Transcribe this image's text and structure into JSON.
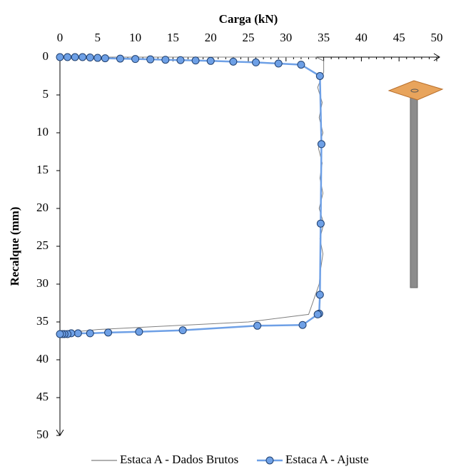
{
  "chart_data": {
    "type": "line",
    "x_label": "Carga (kN)",
    "y_label": "Recalque (mm)",
    "xlim": [
      0,
      50
    ],
    "xticks": [
      0,
      5,
      10,
      15,
      20,
      25,
      30,
      35,
      40,
      45,
      50
    ],
    "ylim": [
      0,
      50
    ],
    "yticks": [
      0,
      5,
      10,
      15,
      20,
      25,
      30,
      35,
      40,
      45,
      50
    ],
    "x_axis_position": "top",
    "y_inverted": true,
    "legend": "bottom",
    "series": [
      {
        "name": "Estaca A - Dados Brutos",
        "color": "#808080",
        "x": [
          0,
          10,
          20,
          30,
          34,
          35,
          35,
          34.2,
          34.8,
          34.4,
          34.9,
          34.3,
          34.8,
          34.5,
          34.9,
          34.4,
          35,
          34.5,
          34.9,
          34.6,
          34.4,
          33,
          25,
          15,
          5,
          0
        ],
        "values": [
          0,
          0,
          0,
          0,
          0,
          0.5,
          2,
          4,
          6,
          8,
          10,
          12,
          14,
          16,
          18,
          20,
          22,
          24,
          26,
          28,
          30,
          34,
          35,
          35.5,
          36,
          36.5
        ]
      },
      {
        "name": "Estaca A  - Ajuste",
        "color": "#6ea0e6",
        "marker": "circle",
        "x": [
          0,
          1,
          2,
          3,
          4,
          5,
          6,
          8,
          10,
          12,
          14,
          16,
          18,
          20,
          23,
          26,
          29,
          32,
          34.5,
          34.7,
          34.6,
          34.5,
          34.4,
          34.2,
          32.2,
          26.2,
          16.3,
          10.5,
          6.4,
          4,
          2.4,
          1.5,
          1,
          0.6,
          0.3,
          0
        ],
        "values": [
          0,
          0,
          0,
          0,
          0.05,
          0.1,
          0.15,
          0.2,
          0.25,
          0.3,
          0.35,
          0.4,
          0.45,
          0.5,
          0.6,
          0.7,
          0.85,
          1.0,
          2.5,
          11.5,
          22,
          31.4,
          33.9,
          34,
          35.4,
          35.5,
          36.1,
          36.3,
          36.4,
          36.5,
          36.5,
          36.5,
          36.6,
          36.6,
          36.6,
          36.6
        ]
      }
    ]
  }
}
